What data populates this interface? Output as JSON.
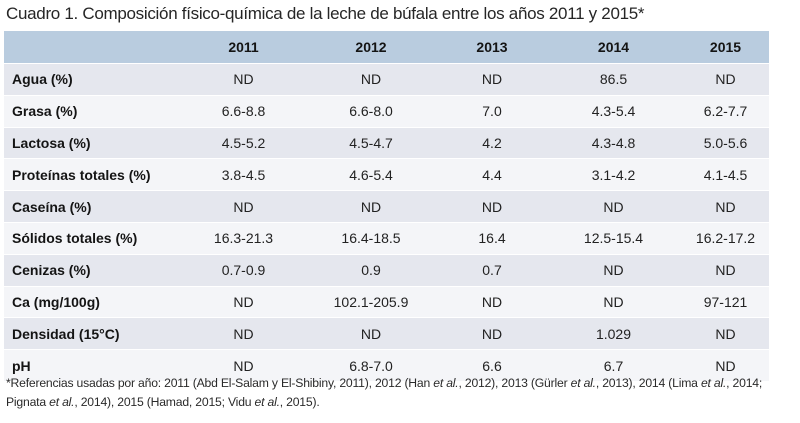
{
  "title": "Cuadro 1. Composición físico-química de la leche de búfala entre los años 2011 y 2015*",
  "table": {
    "columns": [
      "",
      "2011",
      "2012",
      "2013",
      "2014",
      "2015"
    ],
    "rows": [
      {
        "label": "Agua (%)",
        "values": [
          "ND",
          "ND",
          "ND",
          "86.5",
          "ND"
        ]
      },
      {
        "label": "Grasa (%)",
        "values": [
          "6.6-8.8",
          "6.6-8.0",
          "7.0",
          "4.3-5.4",
          "6.2-7.7"
        ]
      },
      {
        "label": "Lactosa (%)",
        "values": [
          "4.5-5.2",
          "4.5-4.7",
          "4.2",
          "4.3-4.8",
          "5.0-5.6"
        ]
      },
      {
        "label": "Proteínas totales (%)",
        "values": [
          "3.8-4.5",
          "4.6-5.4",
          "4.4",
          "3.1-4.2",
          "4.1-4.5"
        ]
      },
      {
        "label": "Caseína (%)",
        "values": [
          "ND",
          "ND",
          "ND",
          "ND",
          "ND"
        ]
      },
      {
        "label": "Sólidos totales (%)",
        "values": [
          "16.3-21.3",
          "16.4-18.5",
          "16.4",
          "12.5-15.4",
          "16.2-17.2"
        ]
      },
      {
        "label": "Cenizas (%)",
        "values": [
          "0.7-0.9",
          "0.9",
          "0.7",
          "ND",
          "ND"
        ]
      },
      {
        "label": "Ca (mg/100g)",
        "values": [
          "ND",
          "102.1-205.9",
          "ND",
          "ND",
          "97-121"
        ]
      },
      {
        "label": "Densidad (15°C)",
        "values": [
          "ND",
          "ND",
          "ND",
          "1.029",
          "ND"
        ]
      },
      {
        "label": "pH",
        "values": [
          "ND",
          "6.8-7.0",
          "6.6",
          "6.7",
          "ND"
        ]
      }
    ]
  },
  "footnote": {
    "p1": "*Referencias usadas por año: 2011 (Abd El-Salam y El-Shibiny, 2011), 2012 (Han ",
    "etal1": "et al.",
    "p2": ", 2012), 2013 (Gürler ",
    "etal2": "et al.",
    "p3": ", 2013), 2014 (Lima ",
    "etal3": "et al.",
    "p4": ", 2014; Pignata ",
    "etal4": "et al.",
    "p5": ", 2014), 2015 (Hamad, 2015; Vidu ",
    "etal5": "et al.",
    "p6": ", 2015)."
  }
}
